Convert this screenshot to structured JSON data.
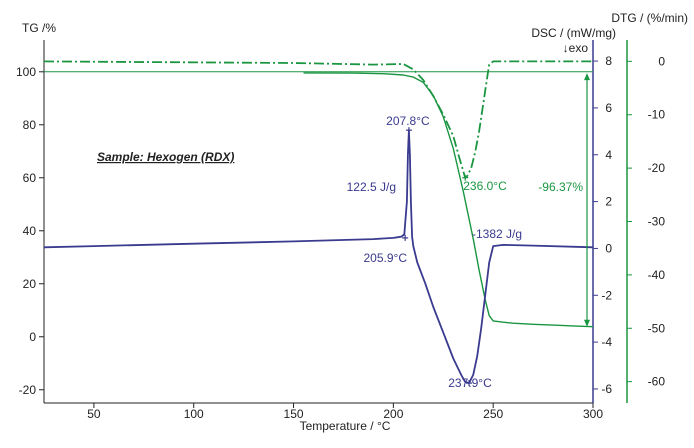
{
  "chart_data": {
    "type": "line",
    "sample_label": "Sample: Hexogen (RDX)",
    "axes": {
      "x": {
        "label": "Temperature / °C",
        "range": [
          25,
          300
        ],
        "ticks": [
          50,
          100,
          150,
          200,
          250,
          300
        ]
      },
      "tg": {
        "label": "TG /%",
        "range": [
          -25,
          112
        ],
        "ticks": [
          100,
          80,
          60,
          40,
          20,
          0,
          -20
        ]
      },
      "dsc": {
        "label": "DSC / (mW/mg)",
        "sublabel": "↓exo",
        "range": [
          -6.6,
          8.9
        ],
        "ticks": [
          8,
          6,
          4,
          2,
          0,
          -2,
          -4,
          -6
        ]
      },
      "dtg": {
        "label": "DTG / (%/min)",
        "range": [
          -64,
          4
        ],
        "ticks": [
          0,
          -10,
          -20,
          -30,
          -40,
          -50,
          -60
        ]
      }
    },
    "colors": {
      "tg": "#1a9641",
      "dtg": "#1a9641",
      "dsc": "#3a3a8f",
      "reference": "#1a9641"
    },
    "series": [
      {
        "name": "TG",
        "axis": "tg",
        "style": "solid",
        "points": [
          [
            155,
            99.6
          ],
          [
            180,
            99.5
          ],
          [
            195,
            99.3
          ],
          [
            205,
            98.8
          ],
          [
            210,
            98
          ],
          [
            215,
            96
          ],
          [
            220,
            91
          ],
          [
            225,
            83
          ],
          [
            230,
            71
          ],
          [
            235,
            55
          ],
          [
            240,
            37
          ],
          [
            243,
            25
          ],
          [
            246,
            14
          ],
          [
            248,
            8
          ],
          [
            250,
            6
          ],
          [
            255,
            5.5
          ],
          [
            260,
            5.1
          ],
          [
            270,
            4.7
          ],
          [
            280,
            4.4
          ],
          [
            290,
            4.1
          ],
          [
            300,
            3.8
          ]
        ]
      },
      {
        "name": "DTG",
        "axis": "dtg",
        "style": "dashdot",
        "points": [
          [
            25,
            0
          ],
          [
            150,
            -0.3
          ],
          [
            190,
            -0.6
          ],
          [
            205,
            -0.5
          ],
          [
            210,
            -1.5
          ],
          [
            215,
            -3.5
          ],
          [
            220,
            -6.5
          ],
          [
            225,
            -10
          ],
          [
            230,
            -14
          ],
          [
            233,
            -18
          ],
          [
            236,
            -21.8
          ],
          [
            237,
            -21.5
          ],
          [
            239,
            -20
          ],
          [
            241,
            -17
          ],
          [
            243,
            -13
          ],
          [
            245,
            -8
          ],
          [
            247,
            -3
          ],
          [
            248,
            -0.6
          ],
          [
            250,
            0
          ],
          [
            300,
            0
          ]
        ]
      },
      {
        "name": "DSC",
        "axis": "dsc",
        "style": "solid",
        "points": [
          [
            25,
            0.05
          ],
          [
            50,
            0.1
          ],
          [
            100,
            0.2
          ],
          [
            150,
            0.3
          ],
          [
            190,
            0.4
          ],
          [
            200,
            0.45
          ],
          [
            204,
            0.5
          ],
          [
            205.5,
            0.6
          ],
          [
            206.8,
            2
          ],
          [
            207.3,
            4
          ],
          [
            207.8,
            5.05
          ],
          [
            208.3,
            4
          ],
          [
            208.8,
            2
          ],
          [
            209.4,
            0.5
          ],
          [
            210,
            0.1
          ],
          [
            212,
            -0.6
          ],
          [
            216,
            -1.5
          ],
          [
            220,
            -2.5
          ],
          [
            225,
            -3.6
          ],
          [
            230,
            -4.7
          ],
          [
            234,
            -5.4
          ],
          [
            236,
            -5.7
          ],
          [
            237.9,
            -5.75
          ],
          [
            240,
            -5.4
          ],
          [
            242,
            -4.6
          ],
          [
            244,
            -3.4
          ],
          [
            246,
            -2
          ],
          [
            248,
            -0.6
          ],
          [
            250,
            0.1
          ],
          [
            255,
            0.15
          ],
          [
            270,
            0.12
          ],
          [
            300,
            0.05
          ]
        ]
      },
      {
        "name": "TG 100% reference",
        "axis": "tg",
        "style": "solid",
        "points": [
          [
            25,
            100
          ],
          [
            300,
            100
          ]
        ]
      }
    ],
    "annotations": [
      {
        "text": "207.8°C",
        "x": 207.8,
        "dsc": 5.05
      },
      {
        "text": "122.5 J/g"
      },
      {
        "text": "205.9°C",
        "x": 205.9,
        "dsc": 0.45
      },
      {
        "text": "236.0°C",
        "x": 236.0,
        "dtg": -21.8
      },
      {
        "text": "-1382 J/g"
      },
      {
        "text": "237.9°C",
        "x": 237.9,
        "dsc": -5.75
      },
      {
        "text": "-96.37%",
        "tg_from": 99.5,
        "tg_to": 3.8
      }
    ],
    "grid": false,
    "legend": "none"
  }
}
